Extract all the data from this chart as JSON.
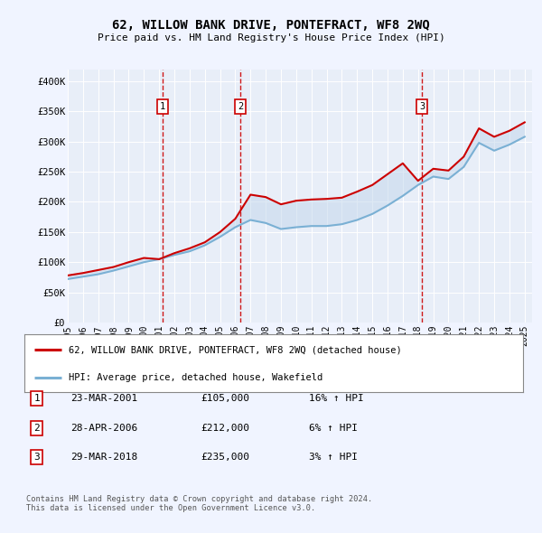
{
  "title": "62, WILLOW BANK DRIVE, PONTEFRACT, WF8 2WQ",
  "subtitle": "Price paid vs. HM Land Registry's House Price Index (HPI)",
  "background_color": "#f0f4ff",
  "plot_bg_color": "#e8eef8",
  "ylim": [
    0,
    420000
  ],
  "yticks": [
    0,
    50000,
    100000,
    150000,
    200000,
    250000,
    300000,
    350000,
    400000
  ],
  "ytick_labels": [
    "£0",
    "£50K",
    "£100K",
    "£150K",
    "£200K",
    "£250K",
    "£300K",
    "£350K",
    "£400K"
  ],
  "xlim_start": 1995.0,
  "xlim_end": 2025.5,
  "xtick_years": [
    1995,
    1996,
    1997,
    1998,
    1999,
    2000,
    2001,
    2002,
    2003,
    2004,
    2005,
    2006,
    2007,
    2008,
    2009,
    2010,
    2011,
    2012,
    2013,
    2014,
    2015,
    2016,
    2017,
    2018,
    2019,
    2020,
    2021,
    2022,
    2023,
    2024,
    2025
  ],
  "sale_dates": [
    2001.22,
    2006.33,
    2018.25
  ],
  "sale_prices": [
    105000,
    212000,
    235000
  ],
  "sale_labels": [
    "1",
    "2",
    "3"
  ],
  "red_line_color": "#cc0000",
  "blue_line_color": "#7ab0d4",
  "blue_fill_color": "#c5d8ec",
  "legend_label_red": "62, WILLOW BANK DRIVE, PONTEFRACT, WF8 2WQ (detached house)",
  "legend_label_blue": "HPI: Average price, detached house, Wakefield",
  "table_rows": [
    [
      "1",
      "23-MAR-2001",
      "£105,000",
      "16% ↑ HPI"
    ],
    [
      "2",
      "28-APR-2006",
      "£212,000",
      "6% ↑ HPI"
    ],
    [
      "3",
      "29-MAR-2018",
      "£235,000",
      "3% ↑ HPI"
    ]
  ],
  "footer_text": "Contains HM Land Registry data © Crown copyright and database right 2024.\nThis data is licensed under the Open Government Licence v3.0.",
  "hpi_years": [
    1995,
    1996,
    1997,
    1998,
    1999,
    2000,
    2001,
    2002,
    2003,
    2004,
    2005,
    2006,
    2007,
    2008,
    2009,
    2010,
    2011,
    2012,
    2013,
    2014,
    2015,
    2016,
    2017,
    2018,
    2019,
    2020,
    2021,
    2022,
    2023,
    2024,
    2025
  ],
  "hpi_values": [
    72000,
    76000,
    80000,
    86000,
    93000,
    100000,
    105000,
    112000,
    118000,
    128000,
    142000,
    158000,
    170000,
    165000,
    155000,
    158000,
    160000,
    160000,
    163000,
    170000,
    180000,
    194000,
    210000,
    228000,
    242000,
    238000,
    258000,
    298000,
    285000,
    295000,
    308000
  ],
  "red_line_years": [
    1995,
    1996,
    1997,
    1998,
    1999,
    2000,
    2001,
    2002,
    2003,
    2004,
    2005,
    2006,
    2007,
    2008,
    2009,
    2010,
    2011,
    2012,
    2013,
    2014,
    2015,
    2016,
    2017,
    2018,
    2019,
    2020,
    2021,
    2022,
    2023,
    2024,
    2025
  ],
  "red_line_values": [
    78000,
    82000,
    87000,
    92000,
    100000,
    107000,
    105000,
    115000,
    123000,
    133000,
    150000,
    172000,
    212000,
    208000,
    196000,
    202000,
    204000,
    205000,
    207000,
    217000,
    228000,
    246000,
    264000,
    235000,
    255000,
    252000,
    275000,
    322000,
    308000,
    318000,
    332000
  ]
}
